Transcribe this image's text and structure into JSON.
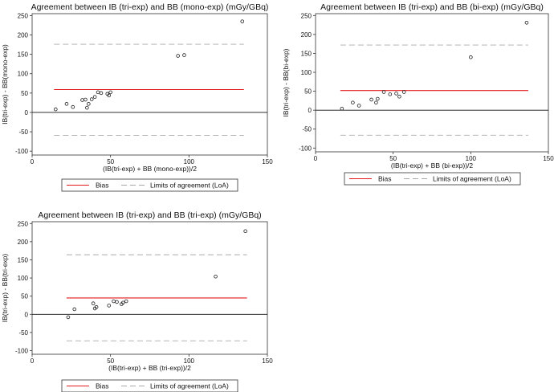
{
  "chart_data": [
    {
      "type": "scatter",
      "title": "Agreement between IB (tri-exp) and BB (mono-exp) (mGy/GBq)",
      "xlabel": "(IB(tri-exp) + BB (mono-exp))/2",
      "ylabel": "IB(tri-exp) - BB(mono-exp)",
      "xlim": [
        0,
        150
      ],
      "ylim": [
        -110,
        255
      ],
      "xticks": [
        "0",
        "50",
        "100",
        "150"
      ],
      "yticks": [
        "-100",
        "-50",
        "0",
        "50",
        "100",
        "150",
        "200",
        "250"
      ],
      "series": [
        {
          "x": [
            15,
            22,
            26,
            32,
            34,
            35,
            36,
            38,
            40,
            42,
            44,
            48,
            49,
            50,
            93,
            97,
            134
          ],
          "y": [
            8,
            22,
            14,
            32,
            33,
            12,
            22,
            34,
            40,
            52,
            50,
            48,
            44,
            52,
            146,
            148,
            235
          ]
        }
      ],
      "reference_lines": [
        {
          "y": 59,
          "color": "#e31a1c",
          "style": "solid"
        },
        {
          "y": 176,
          "color": "#aaaaaa",
          "style": "dashed"
        },
        {
          "y": -59,
          "color": "#aaaaaa",
          "style": "dashed"
        }
      ],
      "legend": {
        "position": "bottom",
        "bias_label": "Bias",
        "loa_label": "Limits of agreement (LoA)"
      }
    },
    {
      "type": "scatter",
      "title": "Agreement between IB (tri-exp) and BB (bi-exp) (mGy/GBq)",
      "xlabel": "(IB(tri-exp) + BB (bi-exp))/2",
      "ylabel": "IB(tri-exp) - BB(bi-exp)",
      "xlim": [
        0,
        150
      ],
      "ylim": [
        -110,
        255
      ],
      "xticks": [
        "0",
        "50",
        "100",
        "150"
      ],
      "yticks": [
        "-100",
        "-50",
        "0",
        "50",
        "100",
        "150",
        "200",
        "250"
      ],
      "series": [
        {
          "x": [
            17,
            24,
            28,
            36,
            39,
            40,
            44,
            48,
            52,
            54,
            57,
            100,
            136
          ],
          "y": [
            4,
            20,
            12,
            28,
            20,
            30,
            48,
            42,
            44,
            36,
            48,
            140,
            231
          ]
        }
      ],
      "reference_lines": [
        {
          "y": 52,
          "color": "#e31a1c",
          "style": "solid"
        },
        {
          "y": 172,
          "color": "#aaaaaa",
          "style": "dashed"
        },
        {
          "y": -66,
          "color": "#aaaaaa",
          "style": "dashed"
        }
      ],
      "legend": {
        "position": "bottom",
        "bias_label": "Bias",
        "loa_label": "Limits of agreement (LoA)"
      }
    },
    {
      "type": "scatter",
      "title": "Agreement between IB (tri-exp) and BB (tri-exp) (mGy/GBq)",
      "xlabel": "(IB(tri-exp) + BB (tri-exp))/2",
      "ylabel": "IB(tri-exp) - BB(tri-exp)",
      "xlim": [
        0,
        150
      ],
      "ylim": [
        -110,
        255
      ],
      "xticks": [
        "0",
        "50",
        "100",
        "150"
      ],
      "yticks": [
        "-100",
        "-50",
        "0",
        "50",
        "100",
        "150",
        "200",
        "250"
      ],
      "series": [
        {
          "x": [
            23,
            27,
            39,
            40,
            41,
            49,
            52,
            54,
            57,
            58,
            60,
            117,
            136
          ],
          "y": [
            -8,
            14,
            30,
            16,
            20,
            24,
            36,
            34,
            28,
            32,
            36,
            104,
            229
          ]
        }
      ],
      "reference_lines": [
        {
          "y": 45,
          "color": "#e31a1c",
          "style": "solid"
        },
        {
          "y": 164,
          "color": "#aaaaaa",
          "style": "dashed"
        },
        {
          "y": -73,
          "color": "#aaaaaa",
          "style": "dashed"
        }
      ],
      "legend": {
        "position": "bottom",
        "bias_label": "Bias",
        "loa_label": "Limits of agreement (LoA)"
      }
    }
  ]
}
